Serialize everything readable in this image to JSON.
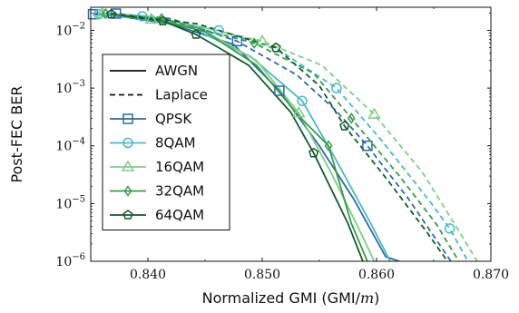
{
  "chart_data": {
    "type": "line",
    "title": "",
    "xlabel": "Normalized GMI (GMI/",
    "xlabel_var": "m",
    "xlabel_close": ")",
    "ylabel": "Post-FEC BER",
    "xlim": [
      0.835,
      0.87
    ],
    "ylim_log10": [
      -6,
      -1.6
    ],
    "yscale": "log",
    "grid": false,
    "legend_position": "bottom-left",
    "x_ticks": [
      0.84,
      0.85,
      0.86,
      0.87
    ],
    "x_tick_labels": [
      "0.840",
      "0.850",
      "0.860",
      "0.870"
    ],
    "y_ticks_exp": [
      -2,
      -3,
      -4,
      -5,
      -6
    ],
    "y_tick_base": "10",
    "y_tick_exponents": [
      "−2",
      "−3",
      "−4",
      "−5",
      "−6"
    ],
    "legend": {
      "style_entries": [
        {
          "label": "AWGN",
          "dash": "solid"
        },
        {
          "label": "Laplace",
          "dash": "dashed"
        }
      ],
      "marker_entries": [
        "QPSK",
        "8QAM",
        "16QAM",
        "32QAM",
        "64QAM"
      ]
    },
    "series": [
      {
        "name": "QPSK",
        "noise": "AWGN",
        "color": "#2e6aa8",
        "marker": "square",
        "points": [
          [
            0.8352,
            0.019
          ],
          [
            0.838,
            0.017
          ],
          [
            0.842,
            0.013
          ],
          [
            0.8475,
            0.0057
          ],
          [
            0.8515,
            0.0009
          ],
          [
            0.855,
            0.0001
          ],
          [
            0.858,
            1.2e-05
          ],
          [
            0.8608,
            1.2e-06
          ],
          [
            0.862,
            1e-06
          ]
        ]
      },
      {
        "name": "8QAM",
        "noise": "AWGN",
        "color": "#4bb8c8",
        "marker": "circle",
        "points": [
          [
            0.8357,
            0.019
          ],
          [
            0.8395,
            0.016
          ],
          [
            0.8435,
            0.012
          ],
          [
            0.849,
            0.0035
          ],
          [
            0.8535,
            0.0006
          ],
          [
            0.8565,
            5.5e-05
          ],
          [
            0.8595,
            4.5e-06
          ],
          [
            0.8612,
            1e-06
          ]
        ]
      },
      {
        "name": "16QAM",
        "noise": "AWGN",
        "color": "#7fce84",
        "marker": "triangle",
        "points": [
          [
            0.836,
            0.0195
          ],
          [
            0.8403,
            0.0155
          ],
          [
            0.8445,
            0.011
          ],
          [
            0.8495,
            0.003
          ],
          [
            0.8532,
            0.00037
          ],
          [
            0.856,
            3.5e-05
          ],
          [
            0.8585,
            3.5e-06
          ],
          [
            0.8598,
            1e-06
          ]
        ]
      },
      {
        "name": "32QAM",
        "noise": "AWGN",
        "color": "#3a9a4a",
        "marker": "diamond",
        "points": [
          [
            0.8363,
            0.0195
          ],
          [
            0.841,
            0.015
          ],
          [
            0.845,
            0.0095
          ],
          [
            0.8495,
            0.0025
          ],
          [
            0.8532,
            0.00033
          ],
          [
            0.8558,
            0.0001
          ],
          [
            0.8578,
            4.5e-06
          ],
          [
            0.8592,
            1e-06
          ]
        ]
      },
      {
        "name": "64QAM",
        "noise": "AWGN",
        "color": "#145a2c",
        "marker": "pentagon",
        "points": [
          [
            0.8368,
            0.019
          ],
          [
            0.8413,
            0.0145
          ],
          [
            0.8442,
            0.0085
          ],
          [
            0.8488,
            0.0025
          ],
          [
            0.8525,
            0.00038
          ],
          [
            0.8545,
            7.5e-05
          ],
          [
            0.8575,
            4.5e-06
          ],
          [
            0.8588,
            1e-06
          ]
        ]
      },
      {
        "name": "QPSK",
        "noise": "Laplace",
        "color": "#2e6aa8",
        "marker": "square",
        "points": [
          [
            0.8352,
            0.0195
          ],
          [
            0.8372,
            0.0195
          ],
          [
            0.842,
            0.016
          ],
          [
            0.8478,
            0.0065
          ],
          [
            0.853,
            0.0017
          ],
          [
            0.8565,
            0.0004
          ],
          [
            0.8592,
            0.0001
          ],
          [
            0.8628,
            1.2e-05
          ],
          [
            0.8665,
            1e-06
          ]
        ]
      },
      {
        "name": "8QAM",
        "noise": "Laplace",
        "color": "#4bb8c8",
        "marker": "circle",
        "points": [
          [
            0.8358,
            0.0195
          ],
          [
            0.8395,
            0.018
          ],
          [
            0.8462,
            0.01
          ],
          [
            0.8515,
            0.0045
          ],
          [
            0.8565,
            0.001
          ],
          [
            0.8605,
            0.00012
          ],
          [
            0.8645,
            1.2e-05
          ],
          [
            0.8664,
            3.7e-06
          ],
          [
            0.868,
            1e-06
          ]
        ]
      },
      {
        "name": "16QAM",
        "noise": "Laplace",
        "color": "#7fce84",
        "marker": "triangle",
        "points": [
          [
            0.8362,
            0.0195
          ],
          [
            0.8405,
            0.0175
          ],
          [
            0.85,
            0.0065
          ],
          [
            0.8552,
            0.0025
          ],
          [
            0.8598,
            0.00035
          ],
          [
            0.864,
            3.5e-05
          ],
          [
            0.8668,
            4.5e-06
          ],
          [
            0.8688,
            1e-06
          ]
        ]
      },
      {
        "name": "32QAM",
        "noise": "Laplace",
        "color": "#3a9a4a",
        "marker": "diamond",
        "points": [
          [
            0.8365,
            0.0195
          ],
          [
            0.8412,
            0.016
          ],
          [
            0.8493,
            0.006
          ],
          [
            0.8545,
            0.0018
          ],
          [
            0.8578,
            0.0003
          ],
          [
            0.862,
            3e-05
          ],
          [
            0.8652,
            4.5e-06
          ],
          [
            0.8672,
            1e-06
          ]
        ]
      },
      {
        "name": "64QAM",
        "noise": "Laplace",
        "color": "#145a2c",
        "marker": "pentagon",
        "points": [
          [
            0.8368,
            0.0195
          ],
          [
            0.8443,
            0.013
          ],
          [
            0.8512,
            0.005
          ],
          [
            0.855,
            0.0011
          ],
          [
            0.8572,
            0.00022
          ],
          [
            0.861,
            2.5e-05
          ],
          [
            0.8645,
            3e-06
          ],
          [
            0.8662,
            1e-06
          ]
        ]
      }
    ],
    "markers": [
      {
        "series": "QPSK",
        "color": "#2e6aa8",
        "marker": "square",
        "points": [
          [
            0.8352,
            0.019
          ],
          [
            0.8372,
            0.0195
          ],
          [
            0.8478,
            0.0065
          ],
          [
            0.8515,
            0.0009
          ],
          [
            0.8592,
            0.0001
          ]
        ]
      },
      {
        "series": "8QAM",
        "color": "#4bb8c8",
        "marker": "circle",
        "points": [
          [
            0.8357,
            0.019
          ],
          [
            0.8395,
            0.0175
          ],
          [
            0.8462,
            0.01
          ],
          [
            0.8535,
            0.0006
          ],
          [
            0.8565,
            0.001
          ],
          [
            0.8664,
            3.7e-06
          ]
        ]
      },
      {
        "series": "16QAM",
        "color": "#7fce84",
        "marker": "triangle",
        "points": [
          [
            0.836,
            0.0195
          ],
          [
            0.8403,
            0.0155
          ],
          [
            0.85,
            0.0065
          ],
          [
            0.8532,
            0.00037
          ],
          [
            0.8598,
            0.00035
          ]
        ]
      },
      {
        "series": "32QAM",
        "color": "#3a9a4a",
        "marker": "diamond",
        "points": [
          [
            0.8363,
            0.0195
          ],
          [
            0.8412,
            0.016
          ],
          [
            0.8493,
            0.006
          ],
          [
            0.8558,
            0.0001
          ],
          [
            0.8578,
            0.0003
          ]
        ]
      },
      {
        "series": "64QAM",
        "color": "#145a2c",
        "marker": "pentagon",
        "points": [
          [
            0.8368,
            0.019
          ],
          [
            0.8413,
            0.0145
          ],
          [
            0.8442,
            0.0085
          ],
          [
            0.8512,
            0.005
          ],
          [
            0.8545,
            7.5e-05
          ],
          [
            0.8572,
            0.00022
          ]
        ]
      }
    ]
  }
}
